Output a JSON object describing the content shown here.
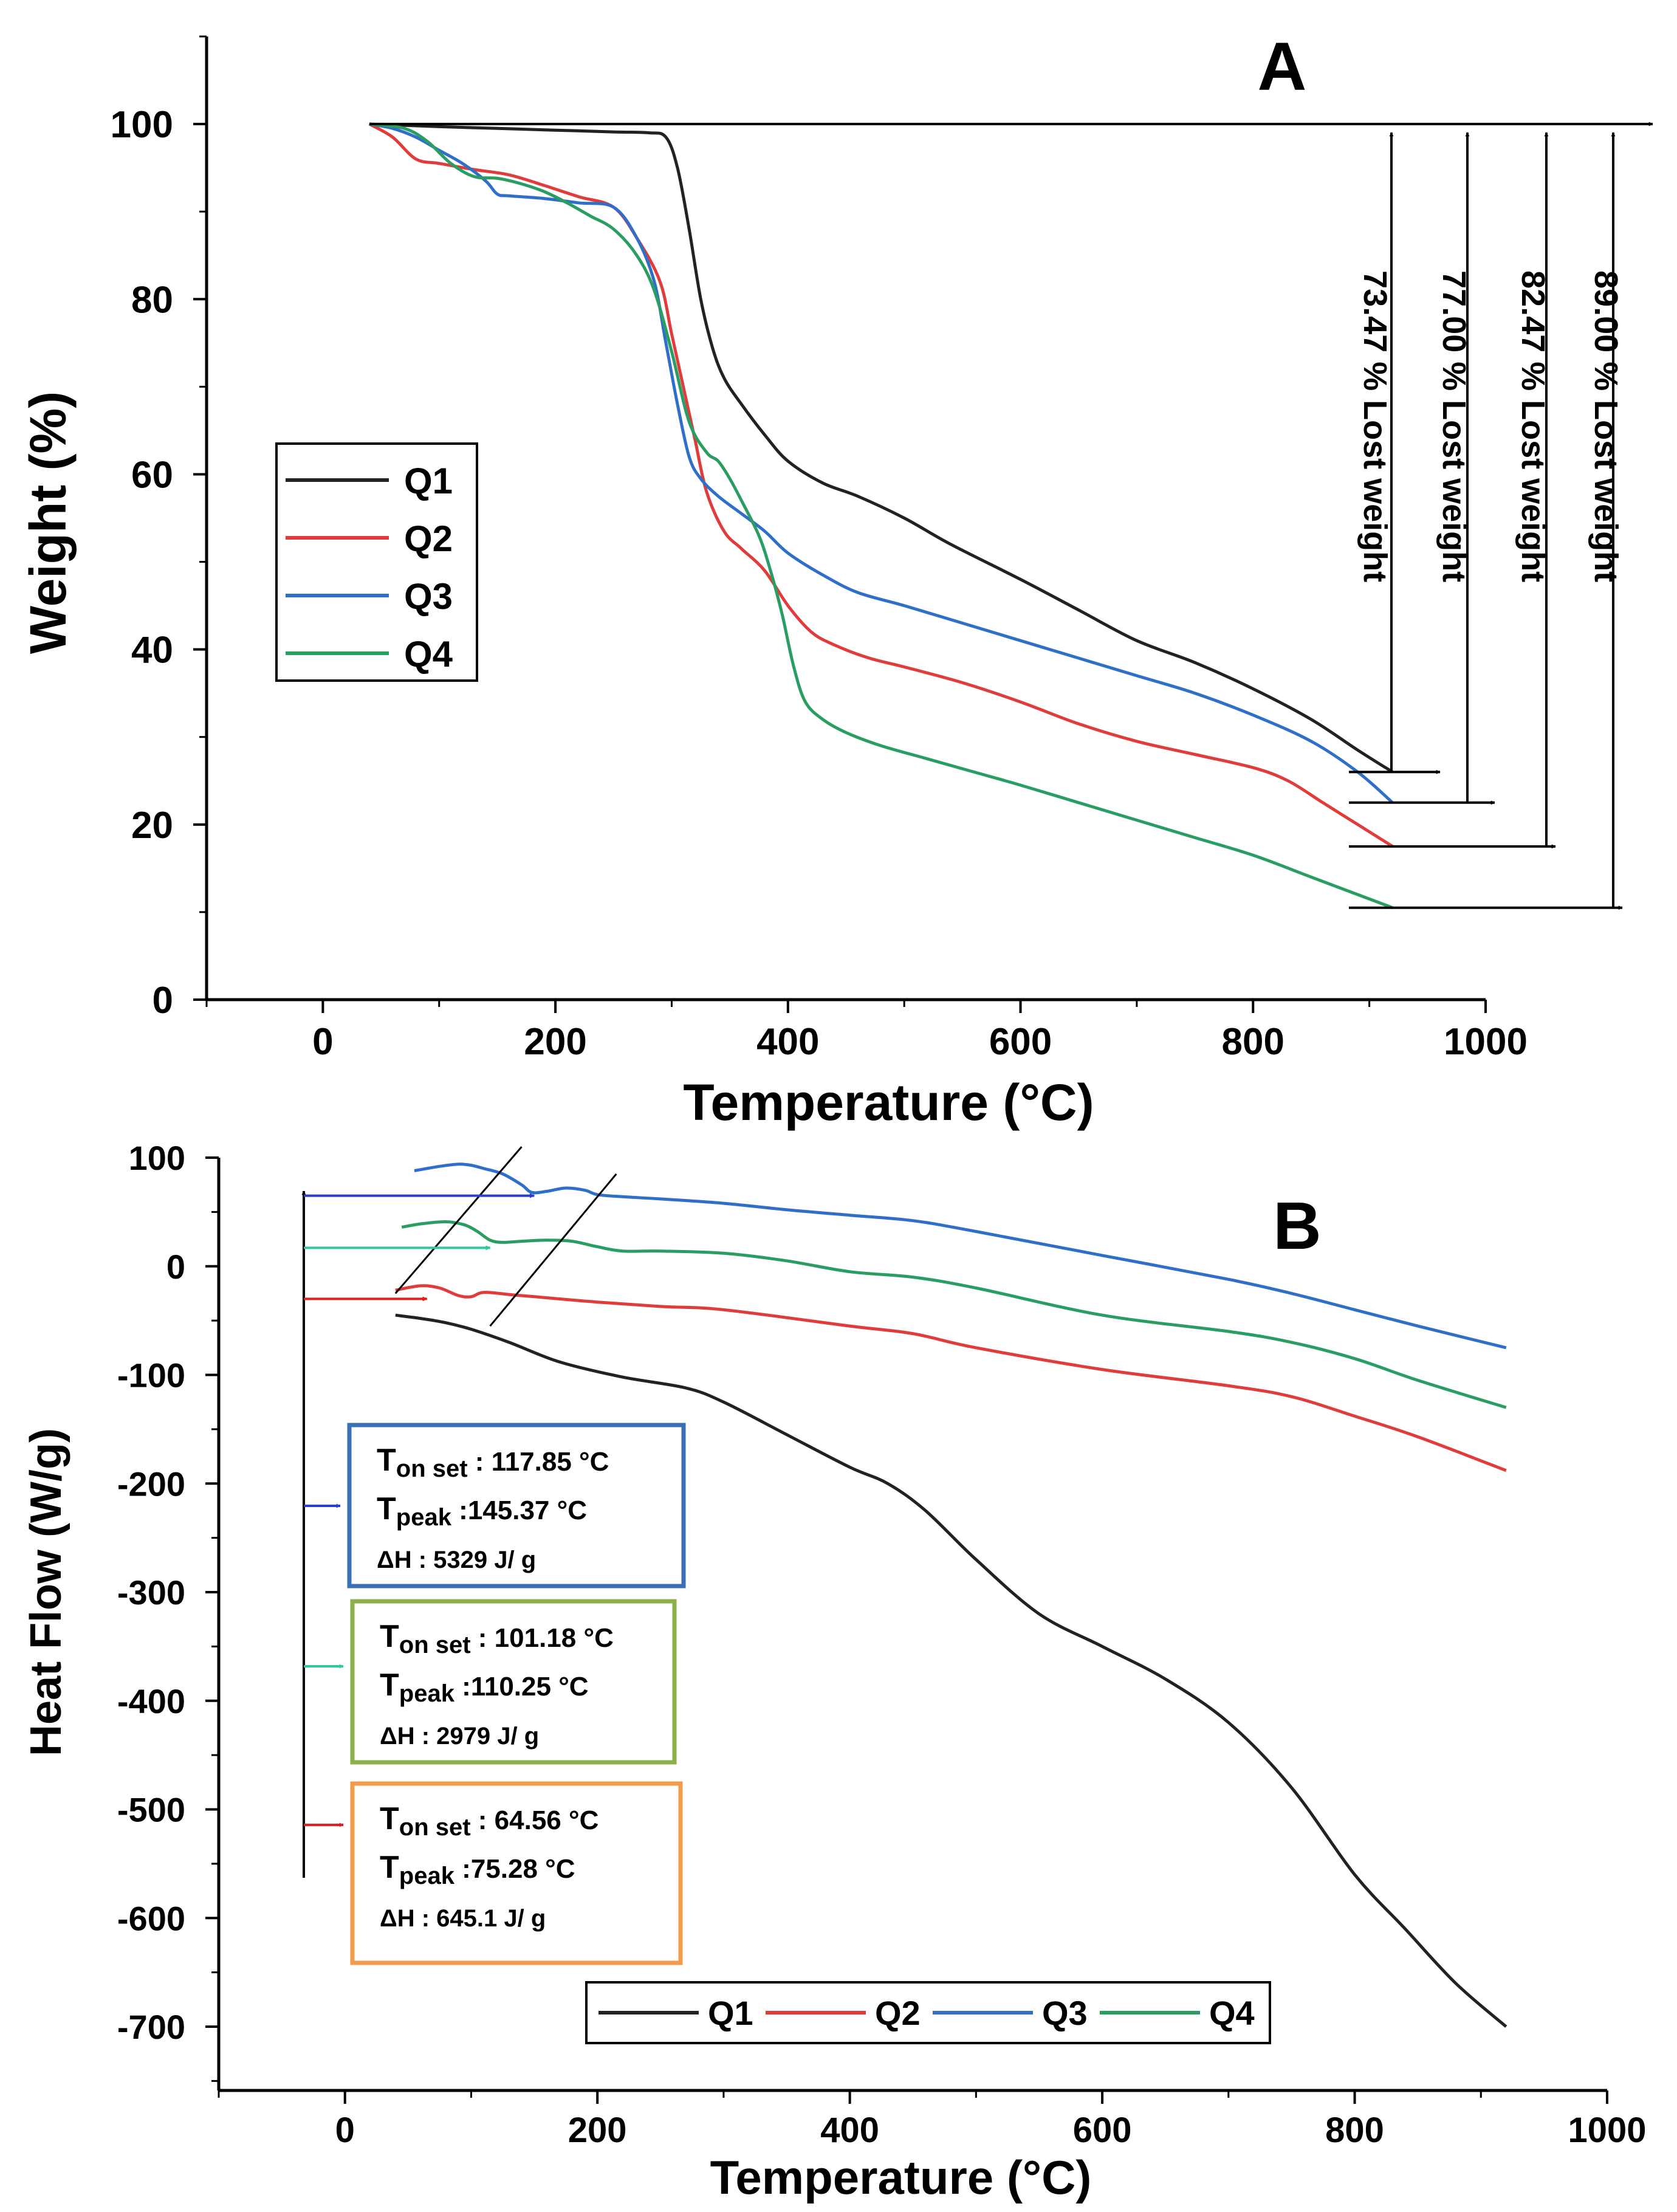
{
  "chart_data": [
    {
      "type": "line",
      "panel_label": "A",
      "title": "",
      "xlabel": "Temperature (°C)",
      "ylabel": "Weight (%)",
      "xlim": [
        -100,
        1000
      ],
      "ylim": [
        0,
        110
      ],
      "xticks": [
        0,
        200,
        400,
        600,
        800,
        1000
      ],
      "yticks": [
        0,
        20,
        40,
        60,
        80,
        100
      ],
      "legend": {
        "position": "center-left",
        "entries": [
          "Q1",
          "Q2",
          "Q3",
          "Q4"
        ]
      },
      "series": [
        {
          "name": "Q1",
          "color": "#222222",
          "x": [
            40,
            100,
            150,
            200,
            250,
            280,
            295,
            305,
            315,
            325,
            335,
            345,
            360,
            380,
            400,
            430,
            460,
            500,
            540,
            600,
            650,
            700,
            750,
            800,
            850,
            890,
            920
          ],
          "y": [
            100,
            99.7,
            99.5,
            99.3,
            99.1,
            99,
            98.5,
            95,
            88,
            80,
            74.5,
            71,
            68,
            64.5,
            61.5,
            59,
            57.5,
            55,
            52,
            48,
            44.5,
            41,
            38.5,
            35.5,
            32,
            28.5,
            26
          ]
        },
        {
          "name": "Q2",
          "color": "#e03c3c",
          "x": [
            40,
            60,
            80,
            100,
            130,
            160,
            190,
            220,
            250,
            270,
            290,
            300,
            310,
            320,
            330,
            345,
            360,
            380,
            400,
            420,
            440,
            470,
            500,
            550,
            600,
            650,
            700,
            750,
            800,
            830,
            860,
            890,
            920
          ],
          "y": [
            100,
            98.5,
            96,
            95.5,
            94.8,
            94.2,
            93,
            91.7,
            90.5,
            87,
            82,
            76,
            70,
            64,
            58,
            53.5,
            51.5,
            49,
            45,
            42,
            40.5,
            39,
            38,
            36.2,
            34,
            31.5,
            29.5,
            28,
            26.5,
            25,
            22.5,
            20,
            17.5
          ]
        },
        {
          "name": "Q3",
          "color": "#2f6fc8",
          "x": [
            40,
            60,
            80,
            100,
            120,
            140,
            150,
            160,
            190,
            220,
            250,
            270,
            285,
            295,
            305,
            315,
            325,
            340,
            360,
            380,
            400,
            430,
            460,
            500,
            550,
            600,
            650,
            700,
            750,
            800,
            850,
            890,
            920
          ],
          "y": [
            100,
            99.5,
            98.5,
            97,
            95.5,
            93.5,
            92,
            91.8,
            91.5,
            91,
            90.5,
            87,
            82,
            75,
            68,
            62,
            59.5,
            57.5,
            55.5,
            53.5,
            51,
            48.5,
            46.5,
            45,
            43,
            41,
            39,
            37,
            35,
            32.5,
            29.5,
            26,
            22.5
          ]
        },
        {
          "name": "Q4",
          "color": "#2a9e62",
          "x": [
            40,
            70,
            90,
            110,
            130,
            150,
            170,
            190,
            210,
            230,
            250,
            270,
            285,
            300,
            315,
            330,
            340,
            350,
            360,
            375,
            385,
            395,
            405,
            415,
            430,
            450,
            480,
            520,
            560,
            600,
            650,
            700,
            750,
            800,
            850,
            890,
            920
          ],
          "y": [
            100,
            99.5,
            98,
            95.5,
            94,
            93.8,
            93.2,
            92.3,
            91,
            89.5,
            88,
            85,
            81,
            74,
            66,
            62.5,
            61.5,
            59.5,
            57,
            53,
            49,
            44,
            38,
            34,
            32,
            30.5,
            29,
            27.5,
            26,
            24.5,
            22.5,
            20.5,
            18.5,
            16.5,
            14,
            12,
            10.5
          ]
        }
      ],
      "annotations": [
        "73.47 % Lost weight",
        "77.00 % Lost weight",
        "82.47 % Lost weight",
        "89.00 % Lost weight"
      ],
      "lost_weight_values": [
        73.47,
        77.0,
        82.47,
        89.0
      ],
      "lost_weight_end_levels": [
        26,
        22.5,
        17.5,
        10.5
      ]
    },
    {
      "type": "line",
      "panel_label": "B",
      "title": "",
      "xlabel": "Temperature (°C)",
      "ylabel": "Heat Flow (W/g)",
      "xlim": [
        -100,
        1000
      ],
      "ylim": [
        -750,
        110
      ],
      "xticks": [
        0,
        200,
        400,
        600,
        800,
        1000
      ],
      "yticks": [
        100,
        0,
        -100,
        -200,
        -300,
        -400,
        -500,
        -600,
        -700
      ],
      "legend": {
        "position": "bottom-center",
        "entries": [
          "Q1",
          "Q2",
          "Q3",
          "Q4"
        ]
      },
      "series": [
        {
          "name": "Q1",
          "color": "#222222",
          "x": [
            40,
            60,
            80,
            100,
            130,
            170,
            220,
            270,
            300,
            350,
            400,
            430,
            460,
            500,
            550,
            600,
            650,
            700,
            750,
            800,
            840,
            880,
            920
          ],
          "y": [
            -45,
            -48,
            -52,
            -58,
            -70,
            -88,
            -102,
            -112,
            -125,
            -155,
            -185,
            -200,
            -225,
            -270,
            -320,
            -350,
            -380,
            -420,
            -480,
            -560,
            -610,
            -660,
            -700
          ]
        },
        {
          "name": "Q2",
          "color": "#e03c3c",
          "x": [
            40,
            60,
            75,
            90,
            100,
            110,
            130,
            150,
            200,
            250,
            300,
            400,
            450,
            500,
            600,
            700,
            750,
            800,
            850,
            920
          ],
          "y": [
            -22,
            -18,
            -20,
            -27,
            -28,
            -24,
            -26,
            -28,
            -33,
            -37,
            -40,
            -55,
            -62,
            -75,
            -95,
            -110,
            -120,
            -138,
            -157,
            -188
          ]
        },
        {
          "name": "Q3",
          "color": "#2f6fc8",
          "x": [
            55,
            75,
            90,
            100,
            110,
            125,
            140,
            148,
            160,
            175,
            190,
            200,
            220,
            250,
            300,
            350,
            400,
            450,
            500,
            600,
            700,
            750,
            800,
            850,
            920
          ],
          "y": [
            88,
            92,
            94,
            93,
            90,
            85,
            75,
            68,
            69,
            72,
            70,
            66,
            64,
            62,
            58,
            52,
            47,
            42,
            32,
            10,
            -12,
            -25,
            -40,
            -55,
            -75
          ]
        },
        {
          "name": "Q4",
          "color": "#2a9e62",
          "x": [
            45,
            60,
            80,
            95,
            105,
            115,
            125,
            140,
            160,
            180,
            200,
            220,
            250,
            300,
            350,
            400,
            450,
            500,
            600,
            700,
            750,
            800,
            850,
            920
          ],
          "y": [
            36,
            39,
            41,
            38,
            32,
            24,
            22,
            23,
            24,
            23,
            18,
            14,
            14,
            12,
            5,
            -5,
            -10,
            -20,
            -45,
            -60,
            -70,
            -85,
            -105,
            -130
          ]
        }
      ],
      "annotations": [
        {
          "color": "#3a6fb5",
          "onset_sub": "on set",
          "onset": ": 117.85 °C",
          "peak_sub": "peak",
          "peak": ":145.37 °C",
          "dh": "ΔH : 5329 J/ g"
        },
        {
          "color": "#8db04c",
          "onset_sub": "on set",
          "onset": ": 101.18 °C",
          "peak_sub": "peak",
          "peak": ":110.25 °C",
          "dh": "ΔH : 2979 J/ g"
        },
        {
          "color": "#f29b4b",
          "onset_sub": "on set",
          "onset": ": 64.56 °C",
          "peak_sub": "peak",
          "peak": ":75.28 °C",
          "dh": "ΔH : 645.1 J/ g"
        }
      ],
      "onset_temps": [
        117.85,
        101.18,
        64.56
      ],
      "peak_temps": [
        145.37,
        110.25,
        75.28
      ],
      "delta_h": [
        5329,
        2979,
        645.1
      ]
    }
  ]
}
